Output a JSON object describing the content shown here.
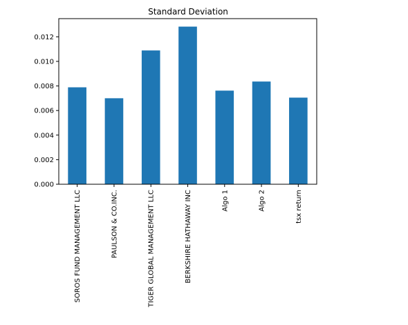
{
  "chart_data": {
    "type": "bar",
    "title": "Standard Deviation",
    "xlabel": "",
    "ylabel": "",
    "categories": [
      "SOROS FUND MANAGEMENT LLC",
      "PAULSON & CO.INC.",
      "TIGER GLOBAL MANAGEMENT LLC",
      "BERKSHIRE HATHAWAY INC",
      "Algo 1",
      "Algo 2",
      "tsx return"
    ],
    "values": [
      0.00789,
      0.007,
      0.01089,
      0.01283,
      0.00762,
      0.00836,
      0.00705
    ],
    "ylim": [
      0,
      0.01348
    ],
    "yticks": [
      "0.000",
      "0.002",
      "0.004",
      "0.006",
      "0.008",
      "0.010",
      "0.012"
    ],
    "ytick_values": [
      0,
      0.002,
      0.004,
      0.006,
      0.008,
      0.01,
      0.012
    ],
    "grid": false,
    "legend": "none",
    "bar_color": "#1f77b4"
  }
}
